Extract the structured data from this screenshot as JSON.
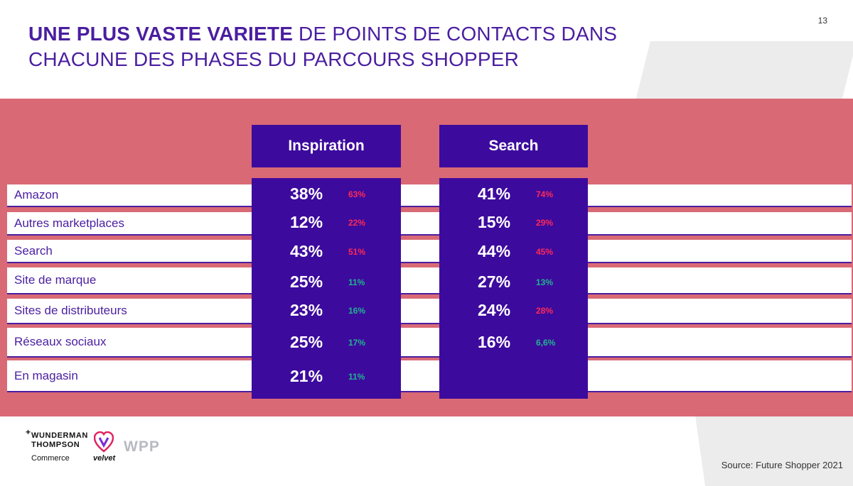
{
  "page_number": "13",
  "title": {
    "bold": "UNE PLUS VASTE VARIETE",
    "rest_line1": " DE POINTS DE CONTACTS DANS",
    "line2": "CHACUNE DES PHASES DU PARCOURS SHOPPER"
  },
  "phases": [
    {
      "label": "Inspiration"
    },
    {
      "label": "Search"
    }
  ],
  "rows": [
    {
      "label": "Amazon",
      "inspiration": {
        "value": "38%",
        "delta": "63%",
        "color": "red"
      },
      "search": {
        "value": "41%",
        "delta": "74%",
        "color": "red"
      }
    },
    {
      "label": "Autres marketplaces",
      "inspiration": {
        "value": "12%",
        "delta": "22%",
        "color": "red"
      },
      "search": {
        "value": "15%",
        "delta": "29%",
        "color": "red"
      }
    },
    {
      "label": "Search",
      "inspiration": {
        "value": "43%",
        "delta": "51%",
        "color": "red"
      },
      "search": {
        "value": "44%",
        "delta": "45%",
        "color": "red"
      }
    },
    {
      "label": "Site de marque",
      "inspiration": {
        "value": "25%",
        "delta": "11%",
        "color": "green"
      },
      "search": {
        "value": "27%",
        "delta": "13%",
        "color": "green"
      }
    },
    {
      "label": "Sites de distributeurs",
      "inspiration": {
        "value": "23%",
        "delta": "16%",
        "color": "green"
      },
      "search": {
        "value": "24%",
        "delta": "28%",
        "color": "red"
      }
    },
    {
      "label": "Réseaux sociaux",
      "inspiration": {
        "value": "25%",
        "delta": "17%",
        "color": "green"
      },
      "search": {
        "value": "16%",
        "delta": "6,6%",
        "color": "green"
      }
    },
    {
      "label": "En magasin",
      "inspiration": {
        "value": "21%",
        "delta": "11%",
        "color": "green"
      },
      "search": null
    }
  ],
  "colors": {
    "brand_purple": "#3d0a9e",
    "title_purple": "#4a1ea0",
    "band": "#d96a75",
    "red": "#ff2a55",
    "green": "#1fb58f"
  },
  "logos": {
    "wunderman_line1": "WUNDERMAN",
    "wunderman_line2": "THOMPSON",
    "wunderman_sub": "Commerce",
    "velvet": "velvet",
    "wpp": "WPP"
  },
  "source": "Source: Future Shopper 2021"
}
